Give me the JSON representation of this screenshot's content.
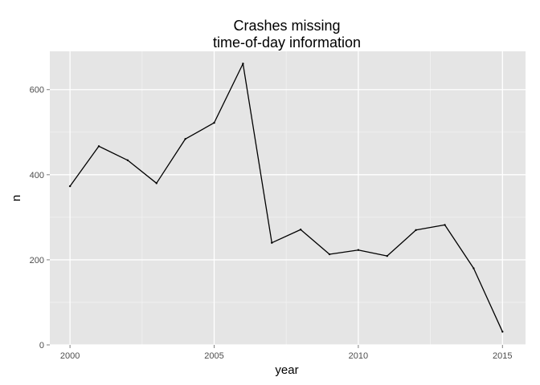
{
  "chart_data": {
    "type": "line",
    "title_line1": "Crashes missing",
    "title_line2": "time-of-day information",
    "xlabel": "year",
    "ylabel": "n",
    "xlim": [
      1999.3,
      2015.8
    ],
    "ylim": [
      0,
      690
    ],
    "x_ticks": [
      2000,
      2005,
      2010,
      2015
    ],
    "x_tick_labels": [
      "2000",
      "2005",
      "2010",
      "2015"
    ],
    "y_ticks": [
      0,
      200,
      400,
      600
    ],
    "y_tick_labels": [
      "0",
      "200",
      "400",
      "600"
    ],
    "grid": true,
    "series": [
      {
        "x": [
          2000,
          2001,
          2002,
          2003,
          2004,
          2005,
          2006,
          2007,
          2008,
          2009,
          2010,
          2011,
          2012,
          2013,
          2014,
          2015
        ],
        "values": [
          373,
          467,
          434,
          380,
          484,
          522,
          661,
          240,
          271,
          213,
          223,
          209,
          270,
          282,
          180,
          31
        ]
      }
    ]
  },
  "colors": {
    "panel_background": "#e5e5e5",
    "grid_major": "#ffffff",
    "grid_minor": "#f2f2f2",
    "line": "#000000",
    "tick_label": "#4d4d4d"
  }
}
